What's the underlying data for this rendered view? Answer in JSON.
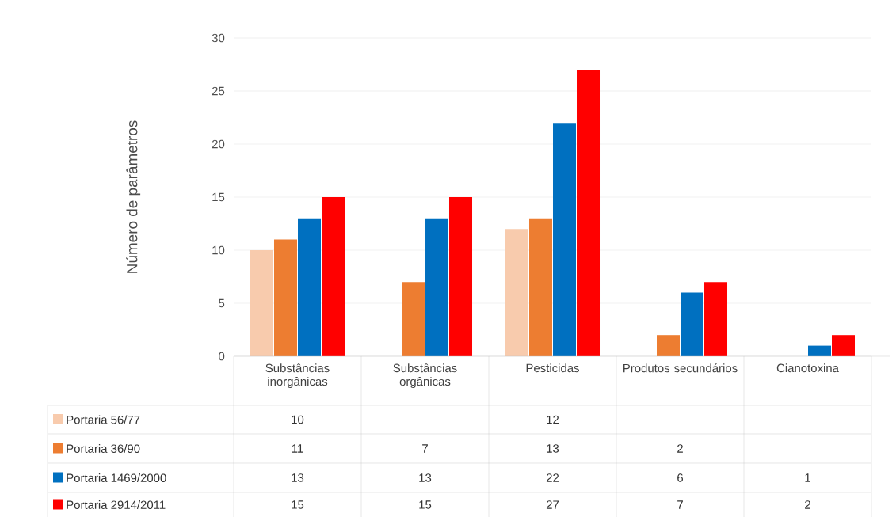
{
  "chart_data": {
    "type": "bar",
    "ylabel": "Número de parâmetros",
    "categories": [
      "Substâncias inorgânicas",
      "Substâncias orgânicas",
      "Pesticidas",
      "Produtos secundários",
      "Cianotoxina"
    ],
    "series": [
      {
        "name": "Portaria 56/77",
        "color": "#f8cbad",
        "values": [
          10,
          null,
          12,
          null,
          null
        ]
      },
      {
        "name": "Portaria 36/90",
        "color": "#ed7d31",
        "values": [
          11,
          7,
          13,
          2,
          null
        ]
      },
      {
        "name": "Portaria 1469/2000",
        "color": "#0070c0",
        "values": [
          13,
          13,
          22,
          6,
          1
        ]
      },
      {
        "name": "Portaria 2914/2011",
        "color": "#ff0000",
        "values": [
          15,
          15,
          27,
          7,
          2
        ]
      }
    ],
    "ylim": [
      0,
      30
    ],
    "yticks": [
      0,
      5,
      10,
      15,
      20,
      25,
      30
    ],
    "grid": "y",
    "legend": "bottom",
    "data_labels": true
  }
}
